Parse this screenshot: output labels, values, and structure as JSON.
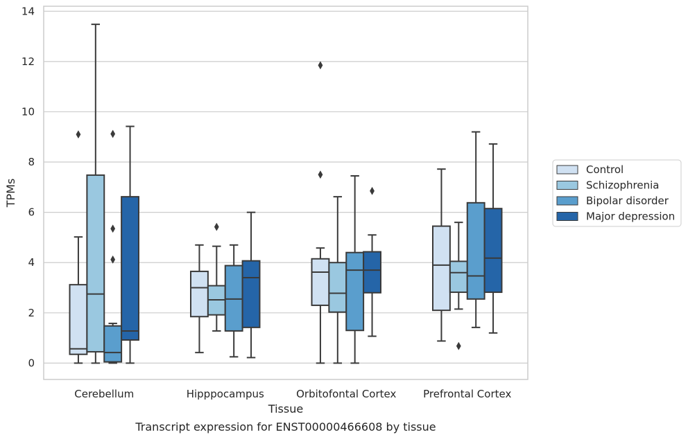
{
  "chart_data": {
    "type": "box",
    "title": "Transcript expression for ENST00000466608 by tissue",
    "xlabel": "Tissue",
    "ylabel": "TPMs",
    "ylim": [
      -0.65,
      14.2
    ],
    "yticks": [
      0,
      2,
      4,
      6,
      8,
      10,
      12,
      14
    ],
    "grid": true,
    "legend_position": "right",
    "categories": [
      "Cerebellum",
      "Hipppocampus",
      "Orbitofontal Cortex",
      "Prefrontal Cortex"
    ],
    "series": [
      {
        "name": "Control",
        "color": "#d0e1f2",
        "boxes": [
          {
            "whislo": 0.0,
            "q1": 0.35,
            "med": 0.57,
            "q3": 3.12,
            "whishi": 5.02,
            "fliers": [
              9.1
            ]
          },
          {
            "whislo": 0.42,
            "q1": 1.85,
            "med": 3.0,
            "q3": 3.65,
            "whishi": 4.7,
            "fliers": []
          },
          {
            "whislo": 0.0,
            "q1": 2.3,
            "med": 3.62,
            "q3": 4.15,
            "whishi": 4.58,
            "fliers": [
              7.5,
              11.85
            ]
          },
          {
            "whislo": 0.88,
            "q1": 2.1,
            "med": 3.9,
            "q3": 5.45,
            "whishi": 7.72,
            "fliers": []
          }
        ]
      },
      {
        "name": "Schizophrenia",
        "color": "#9ac8e0",
        "boxes": [
          {
            "whislo": 0.0,
            "q1": 0.45,
            "med": 2.75,
            "q3": 7.48,
            "whishi": 13.48,
            "fliers": []
          },
          {
            "whislo": 1.28,
            "q1": 1.92,
            "med": 2.52,
            "q3": 3.08,
            "whishi": 4.65,
            "fliers": [
              5.42
            ]
          },
          {
            "whislo": 0.0,
            "q1": 2.03,
            "med": 2.78,
            "q3": 4.0,
            "whishi": 6.62,
            "fliers": []
          },
          {
            "whislo": 2.15,
            "q1": 2.82,
            "med": 3.6,
            "q3": 4.05,
            "whishi": 5.6,
            "fliers": [
              0.68
            ]
          }
        ]
      },
      {
        "name": "Bipolar disorder",
        "color": "#5a9ecd",
        "boxes": [
          {
            "whislo": 0.0,
            "q1": 0.05,
            "med": 0.42,
            "q3": 1.48,
            "whishi": 1.58,
            "fliers": [
              4.12,
              5.35,
              9.12
            ]
          },
          {
            "whislo": 0.25,
            "q1": 1.28,
            "med": 2.55,
            "q3": 3.88,
            "whishi": 4.7,
            "fliers": []
          },
          {
            "whislo": 0.0,
            "q1": 1.3,
            "med": 3.7,
            "q3": 4.4,
            "whishi": 7.45,
            "fliers": []
          },
          {
            "whislo": 1.42,
            "q1": 2.55,
            "med": 3.47,
            "q3": 6.38,
            "whishi": 9.2,
            "fliers": []
          }
        ]
      },
      {
        "name": "Major depression",
        "color": "#2565a8",
        "boxes": [
          {
            "whislo": 0.0,
            "q1": 0.92,
            "med": 1.28,
            "q3": 6.62,
            "whishi": 9.42,
            "fliers": []
          },
          {
            "whislo": 0.22,
            "q1": 1.42,
            "med": 3.4,
            "q3": 4.07,
            "whishi": 6.0,
            "fliers": []
          },
          {
            "whislo": 1.07,
            "q1": 2.8,
            "med": 3.7,
            "q3": 4.43,
            "whishi": 5.1,
            "fliers": [
              6.85
            ]
          },
          {
            "whislo": 1.2,
            "q1": 2.82,
            "med": 4.18,
            "q3": 6.15,
            "whishi": 8.72,
            "fliers": []
          }
        ]
      }
    ]
  }
}
